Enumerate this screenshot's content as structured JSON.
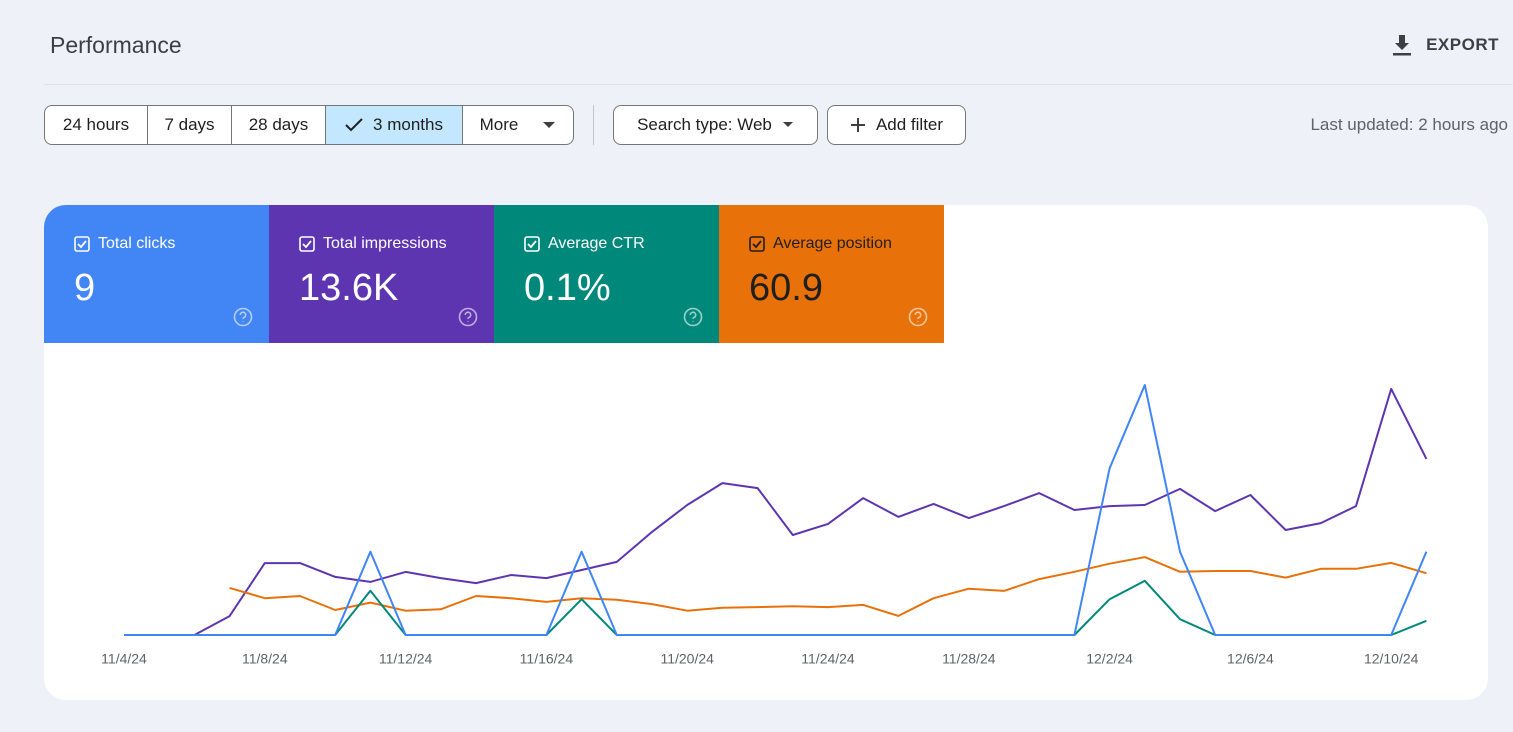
{
  "header": {
    "title": "Performance",
    "export": "EXPORT"
  },
  "filters": {
    "ranges": [
      "24 hours",
      "7 days",
      "28 days",
      "3 months",
      "More"
    ],
    "selected": 3,
    "search_type": "Search type: Web",
    "add_filter": "Add filter",
    "last_updated": "Last updated: 2 hours ago"
  },
  "chart_data": {
    "type": "line",
    "categories": [
      "11/4/24",
      null,
      null,
      null,
      "11/8/24",
      null,
      null,
      null,
      "11/12/24",
      null,
      null,
      null,
      "11/16/24",
      null,
      null,
      null,
      "11/20/24",
      null,
      null,
      null,
      "11/24/24",
      null,
      null,
      null,
      "11/28/24",
      null,
      null,
      null,
      "12/2/24",
      null,
      null,
      null,
      "12/6/24",
      null,
      null,
      null,
      "12/10/24",
      null
    ],
    "series": [
      {
        "name": "Total clicks",
        "total": "9",
        "color": "#4285f4",
        "ylim": [
          0,
          3
        ],
        "values": [
          0,
          0,
          0,
          0,
          0,
          0,
          0,
          1,
          0,
          0,
          0,
          0,
          0,
          1,
          0,
          0,
          0,
          0,
          0,
          0,
          0,
          0,
          0,
          0,
          0,
          0,
          0,
          0,
          2,
          3,
          1,
          0,
          0,
          0,
          0,
          0,
          0,
          1
        ]
      },
      {
        "name": "Total impressions",
        "total": "13.6K",
        "color": "#5e35b1",
        "ylim": [
          0,
          900
        ],
        "values": [
          0,
          0,
          0,
          68,
          259,
          259,
          209,
          191,
          227,
          205,
          187,
          216,
          205,
          234,
          263,
          371,
          468,
          547,
          529,
          360,
          400,
          493,
          425,
          472,
          421,
          464,
          511,
          450,
          464,
          468,
          526,
          446,
          504,
          378,
          403,
          464,
          886,
          634
        ]
      },
      {
        "name": "Average CTR",
        "total": "0.1%",
        "color": "#00897b",
        "ylim": [
          0,
          3
        ],
        "values": [
          0,
          0,
          0,
          0,
          0,
          0,
          0,
          0.53,
          0,
          0,
          0,
          0,
          0,
          0.43,
          0,
          0,
          0,
          0,
          0,
          0,
          0,
          0,
          0,
          0,
          0,
          0,
          0,
          0,
          0.43,
          0.65,
          0.19,
          0,
          0,
          0,
          0,
          0,
          0,
          0.17
        ]
      },
      {
        "name": "Average position",
        "total": "60.9",
        "color": "#e8710a",
        "ylim": [
          0,
          340
        ],
        "values": [
          null,
          null,
          null,
          64,
          50,
          53,
          34,
          44,
          33,
          35,
          53,
          50,
          45,
          50,
          48,
          42,
          33,
          37,
          38,
          39,
          38,
          41,
          26,
          50,
          63,
          60,
          76,
          86,
          97,
          106,
          86,
          87,
          87,
          78,
          90,
          90,
          98,
          84
        ]
      }
    ]
  }
}
